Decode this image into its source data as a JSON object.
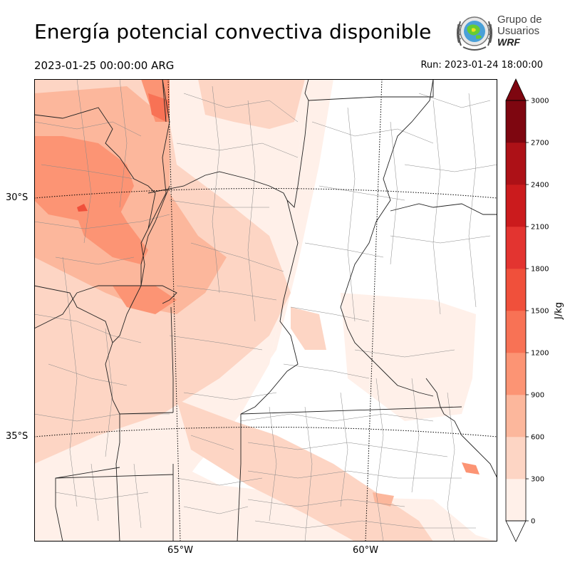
{
  "header": {
    "title": "Energía potencial convectiva disponible",
    "valid_time": "2023-01-25 00:00:00 ARG",
    "run_time": "Run: 2023-01-24 18:00:00"
  },
  "logo": {
    "line1": "Grupo de",
    "line2": "Usuarios",
    "line3": "WRF"
  },
  "map": {
    "lat_labels": [
      "30°S",
      "35°S"
    ],
    "lon_labels": [
      "65°W",
      "60°W"
    ]
  },
  "colorbar": {
    "label": "J/kg",
    "ticks": [
      0,
      300,
      600,
      900,
      1200,
      1500,
      1800,
      2100,
      2400,
      2700,
      3000
    ],
    "colors": [
      "#fff0e9",
      "#fdd5c4",
      "#fcb79c",
      "#fc9474",
      "#f87255",
      "#f0503b",
      "#e33430",
      "#cb1b1d",
      "#ad1117",
      "#7e0610"
    ],
    "extend": "max"
  }
}
